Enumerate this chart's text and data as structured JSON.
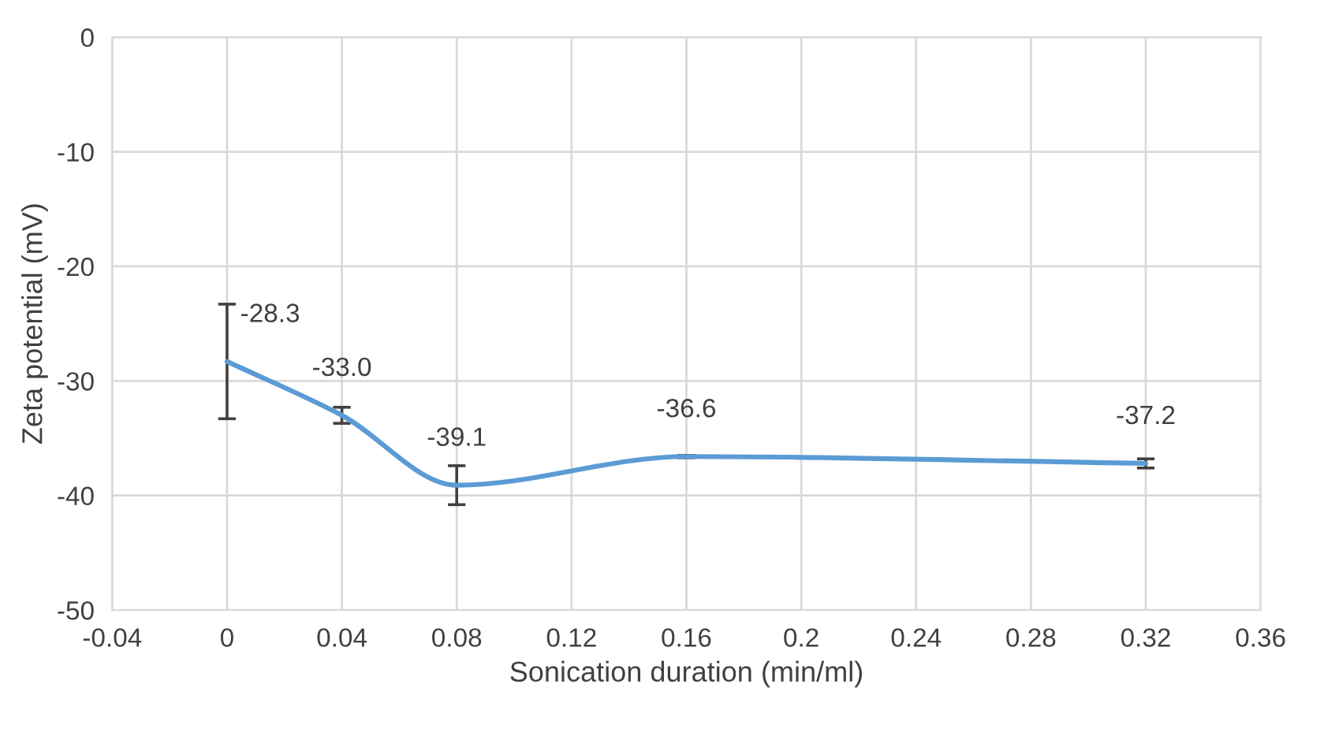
{
  "chart_data": {
    "type": "line",
    "xlabel": "Sonication duration (min/ml)",
    "ylabel": "Zeta potential (mV)",
    "x": [
      0,
      0.04,
      0.08,
      0.16,
      0.32
    ],
    "series": [
      {
        "color": "#5b9bd5",
        "values": [
          -28.3,
          -33.0,
          -39.1,
          -36.6,
          -37.2
        ],
        "errors": [
          5,
          0.7,
          1.7,
          0.1,
          0.4
        ],
        "value_labels": [
          "-28.3",
          "-33.0",
          "-39.1",
          "-36.6",
          "-37.2"
        ]
      }
    ],
    "xlim": [
      -0.04,
      0.36
    ],
    "xticks": [
      -0.04,
      0,
      0.04,
      0.08,
      0.12,
      0.16,
      0.2,
      0.24,
      0.28,
      0.32,
      0.36
    ],
    "ylim": [
      -50,
      0
    ],
    "yticks": [
      -50,
      -40,
      -30,
      -20,
      -10,
      0
    ],
    "grid": true,
    "marker": "none",
    "line_style": "solid"
  }
}
